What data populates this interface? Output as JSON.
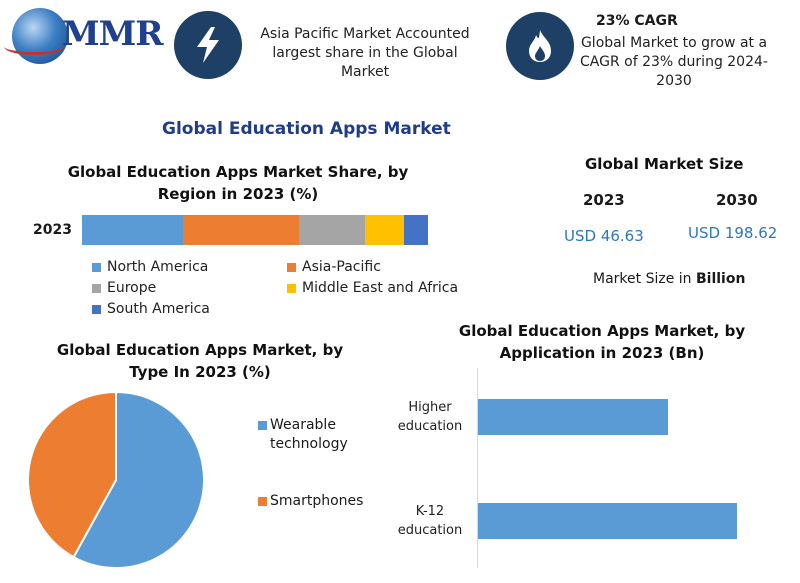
{
  "logo": {
    "text": "MMR"
  },
  "highlights": [
    {
      "icon": "lightning-icon",
      "title": "",
      "text_lines": [
        "Asia Pacific Market Accounted",
        "largest share in the Global",
        "Market"
      ]
    },
    {
      "icon": "flame-icon",
      "title": "23% CAGR",
      "text_lines": [
        "Global Market to grow at a",
        "CAGR of 23% during 2024-",
        "2030"
      ]
    }
  ],
  "main_title": "Global Education Apps Market",
  "market_size": {
    "title": "Global Market Size",
    "years": [
      "2023",
      "2030"
    ],
    "values": [
      "USD 46.63",
      "USD 198.62"
    ],
    "note_prefix": "Market Size in ",
    "note_unit": "Billion"
  },
  "colors": {
    "north_america": "#5b9bd5",
    "asia_pacific": "#ed7d31",
    "europe": "#a5a5a5",
    "mea": "#ffc000",
    "south_america": "#4472c4",
    "wearable": "#5b9bd5",
    "smartphones": "#ed7d31",
    "title_blue": "#1f3c88",
    "icon_bg": "#1e3f66"
  },
  "chart_data": [
    {
      "type": "bar",
      "orientation": "horizontal-stacked",
      "title_lines": [
        "Global Education Apps Market Share, by",
        "Region in 2023 (%)"
      ],
      "categories": [
        "2023"
      ],
      "series": [
        {
          "name": "North America",
          "values": [
            29
          ]
        },
        {
          "name": "Asia-Pacific",
          "values": [
            33
          ]
        },
        {
          "name": "Europe",
          "values": [
            19
          ]
        },
        {
          "name": "Middle East and Africa",
          "values": [
            11
          ]
        },
        {
          "name": "South America",
          "values": [
            7
          ]
        }
      ],
      "xlim": [
        0,
        100
      ],
      "legend": "bottom"
    },
    {
      "type": "pie",
      "title_lines": [
        "Global Education Apps Market, by",
        "Type In 2023 (%)"
      ],
      "categories": [
        "Wearable technology",
        "Smartphones"
      ],
      "legend_lines": [
        [
          "Wearable",
          "technology"
        ],
        [
          "Smartphones"
        ]
      ],
      "values": [
        58,
        42
      ],
      "legend": "right"
    },
    {
      "type": "bar",
      "orientation": "horizontal",
      "title_lines": [
        "Global Education Apps Market, by",
        "Application in 2023 (Bn)"
      ],
      "categories": [
        "Higher education",
        "K-12 education"
      ],
      "category_lines": [
        [
          "Higher",
          "education"
        ],
        [
          "K-12",
          "education"
        ]
      ],
      "values": [
        18,
        24.5
      ],
      "xlim": [
        0,
        25
      ]
    }
  ]
}
